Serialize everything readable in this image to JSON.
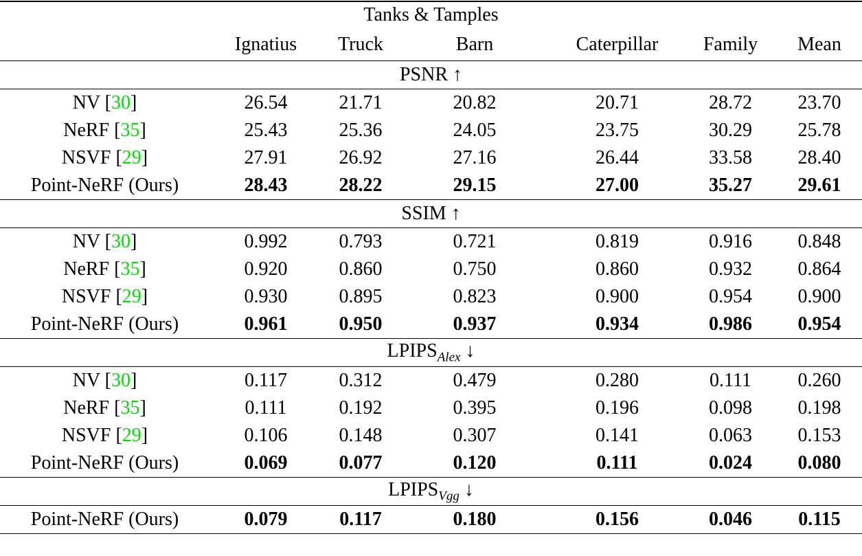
{
  "title": "Tanks & Tamples",
  "columns": [
    "Ignatius",
    "Truck",
    "Barn",
    "Caterpillar",
    "Family",
    "Mean"
  ],
  "sections": [
    {
      "metric": "PSNR",
      "sub": "",
      "arrow": "↑",
      "rows": [
        {
          "method": "NV",
          "cite": "30",
          "values": [
            "26.54",
            "21.71",
            "20.82",
            "20.71",
            "28.72",
            "23.70"
          ]
        },
        {
          "method": "NeRF",
          "cite": "35",
          "values": [
            "25.43",
            "25.36",
            "24.05",
            "23.75",
            "30.29",
            "25.78"
          ]
        },
        {
          "method": "NSVF",
          "cite": "29",
          "values": [
            "27.91",
            "26.92",
            "27.16",
            "26.44",
            "33.58",
            "28.40"
          ]
        },
        {
          "method": "Point-NeRF (Ours)",
          "cite": "",
          "values": [
            "28.43",
            "28.22",
            "29.15",
            "27.00",
            "35.27",
            "29.61"
          ]
        }
      ]
    },
    {
      "metric": "SSIM",
      "sub": "",
      "arrow": "↑",
      "rows": [
        {
          "method": "NV",
          "cite": "30",
          "values": [
            "0.992",
            "0.793",
            "0.721",
            "0.819",
            "0.916",
            "0.848"
          ]
        },
        {
          "method": "NeRF",
          "cite": "35",
          "values": [
            "0.920",
            "0.860",
            "0.750",
            "0.860",
            "0.932",
            "0.864"
          ]
        },
        {
          "method": "NSVF",
          "cite": "29",
          "values": [
            "0.930",
            "0.895",
            "0.823",
            "0.900",
            "0.954",
            "0.900"
          ]
        },
        {
          "method": "Point-NeRF (Ours)",
          "cite": "",
          "values": [
            "0.961",
            "0.950",
            "0.937",
            "0.934",
            "0.986",
            "0.954"
          ]
        }
      ]
    },
    {
      "metric": "LPIPS",
      "sub": "Alex",
      "arrow": "↓",
      "rows": [
        {
          "method": "NV",
          "cite": "30",
          "values": [
            "0.117",
            "0.312",
            "0.479",
            "0.280",
            "0.111",
            "0.260"
          ]
        },
        {
          "method": "NeRF",
          "cite": "35",
          "values": [
            "0.111",
            "0.192",
            "0.395",
            "0.196",
            "0.098",
            "0.198"
          ]
        },
        {
          "method": "NSVF",
          "cite": "29",
          "values": [
            "0.106",
            "0.148",
            "0.307",
            "0.141",
            "0.063",
            "0.153"
          ]
        },
        {
          "method": "Point-NeRF (Ours)",
          "cite": "",
          "values": [
            "0.069",
            "0.077",
            "0.120",
            "0.111",
            "0.024",
            "0.080"
          ]
        }
      ]
    },
    {
      "metric": "LPIPS",
      "sub": "Vgg",
      "arrow": "↓",
      "rows": [
        {
          "method": "Point-NeRF (Ours)",
          "cite": "",
          "values": [
            "0.079",
            "0.117",
            "0.180",
            "0.156",
            "0.046",
            "0.115"
          ]
        }
      ]
    }
  ],
  "citation_color": "#00e000"
}
